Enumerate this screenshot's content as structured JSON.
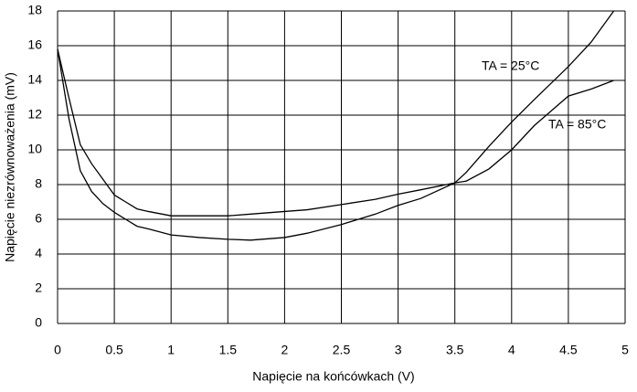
{
  "chart_data": {
    "type": "line",
    "x_label": "Napięcie na końcówkach (V)",
    "y_label": "Napięcie niezrównoważenia (mV)",
    "x": [
      0,
      0.1,
      0.2,
      0.3,
      0.4,
      0.5,
      0.6,
      0.7,
      0.8,
      1,
      1.25,
      1.5,
      1.7,
      2,
      2.2,
      2.5,
      2.8,
      3,
      3.2,
      3.5,
      3.6,
      3.8,
      4,
      4.2,
      4.5,
      4.7,
      4.9
    ],
    "series": [
      {
        "name": "TA = 25°C",
        "color": "#000000",
        "values": [
          15.8,
          11.8,
          8.8,
          7.6,
          6.9,
          6.4,
          6.0,
          5.6,
          5.45,
          5.1,
          4.95,
          4.85,
          4.8,
          4.95,
          5.2,
          5.7,
          6.3,
          6.8,
          7.2,
          8.1,
          8.7,
          10.2,
          11.6,
          12.9,
          14.8,
          16.2,
          18
        ]
      },
      {
        "name": "TA = 85°C",
        "color": "#000000",
        "values": [
          15.8,
          13.0,
          10.3,
          9.2,
          8.3,
          7.4,
          7.0,
          6.6,
          6.45,
          6.2,
          6.2,
          6.2,
          6.3,
          6.45,
          6.55,
          6.85,
          7.15,
          7.45,
          7.7,
          8.1,
          8.2,
          8.9,
          10.0,
          11.4,
          13.1,
          13.5,
          14.0
        ]
      }
    ],
    "xlim": [
      0,
      5
    ],
    "xticks": [
      0,
      0.5,
      1,
      1.5,
      2,
      2.5,
      3,
      3.5,
      4,
      4.5,
      5
    ],
    "ylim": [
      0,
      18
    ],
    "yticks": [
      0,
      2,
      4,
      6,
      8,
      10,
      12,
      14,
      16,
      18
    ],
    "grid": true
  }
}
